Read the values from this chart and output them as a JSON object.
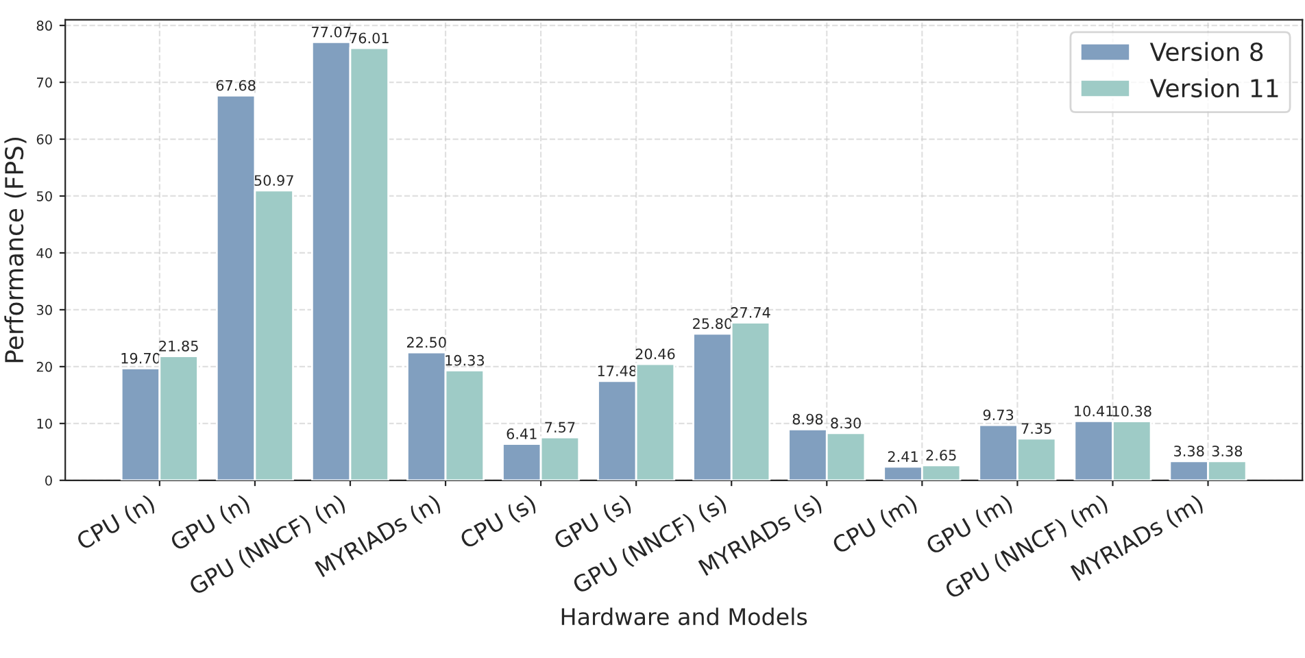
{
  "chart_data": {
    "type": "bar",
    "xlabel": "Hardware and Models",
    "ylabel": "Performance (FPS)",
    "categories": [
      "CPU (n)",
      "GPU (n)",
      "GPU (NNCF) (n)",
      "MYRIADs (n)",
      "CPU (s)",
      "GPU (s)",
      "GPU (NNCF) (s)",
      "MYRIADs (s)",
      "CPU (m)",
      "GPU (m)",
      "GPU (NNCF) (m)",
      "MYRIADs (m)"
    ],
    "series": [
      {
        "name": "Version 8",
        "color": "#819fbf",
        "values": [
          19.7,
          67.68,
          77.07,
          22.5,
          6.41,
          17.48,
          25.8,
          8.98,
          2.41,
          9.73,
          10.41,
          3.38
        ],
        "value_labels": [
          "19.70",
          "67.68",
          "77.07",
          "22.50",
          "6.41",
          "17.48",
          "25.80",
          "8.98",
          "2.41",
          "9.73",
          "10.41",
          "3.38"
        ]
      },
      {
        "name": "Version 11",
        "color": "#9ecbc6",
        "values": [
          21.85,
          50.97,
          76.01,
          19.33,
          7.57,
          20.46,
          27.74,
          8.3,
          2.65,
          7.35,
          10.38,
          3.38
        ],
        "value_labels": [
          "21.85",
          "50.97",
          "76.01",
          "19.33",
          "7.57",
          "20.46",
          "27.74",
          "8.30",
          "2.65",
          "7.35",
          "10.38",
          "3.38"
        ]
      }
    ],
    "ylim": [
      0,
      81
    ],
    "yticks": [
      0,
      10,
      20,
      30,
      40,
      50,
      60,
      70,
      80
    ],
    "grid": true,
    "legend": "top right"
  }
}
